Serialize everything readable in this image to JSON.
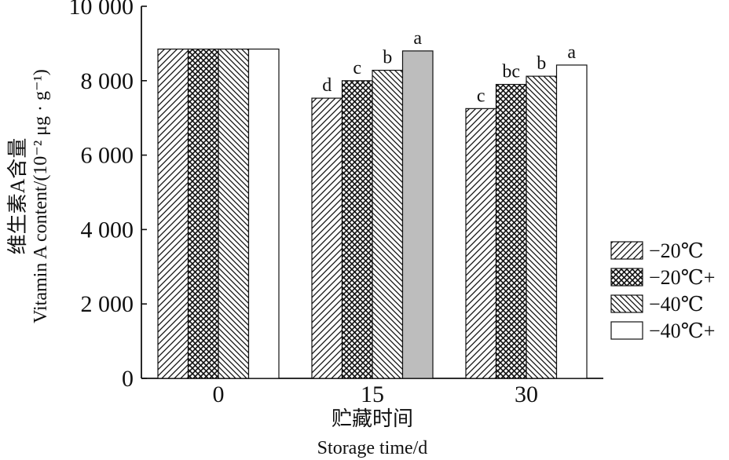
{
  "chart_data": {
    "type": "bar",
    "categories": [
      "0",
      "15",
      "30"
    ],
    "series": [
      {
        "name": "−20℃",
        "pattern": "diagonal-hatch",
        "values": [
          8850,
          7530,
          7250
        ],
        "labels": [
          "",
          "d",
          "c"
        ]
      },
      {
        "name": "−20℃+",
        "pattern": "crosshatch",
        "values": [
          8850,
          8000,
          7900
        ],
        "labels": [
          "",
          "c",
          "bc"
        ]
      },
      {
        "name": "−40℃",
        "pattern": "dense-diagonal-hatch",
        "values": [
          8850,
          8280,
          8120
        ],
        "labels": [
          "",
          "b",
          "b"
        ]
      },
      {
        "name": "−40℃+",
        "pattern": "white",
        "values": [
          8850,
          8800,
          8420
        ],
        "labels": [
          "",
          "a",
          "a"
        ]
      }
    ],
    "ylim": [
      0,
      10000
    ],
    "yticks": [
      "0",
      "2 000",
      "4 000",
      "6 000",
      "8 000",
      "10 000"
    ],
    "ylabel_cn": "维生素A含量",
    "ylabel_en": "Vitamin A content/(10⁻² μg · g⁻¹)",
    "xlabel_cn": "贮藏时间",
    "xlabel_en": "Storage time/d",
    "legend_position": "right",
    "grid": false
  }
}
